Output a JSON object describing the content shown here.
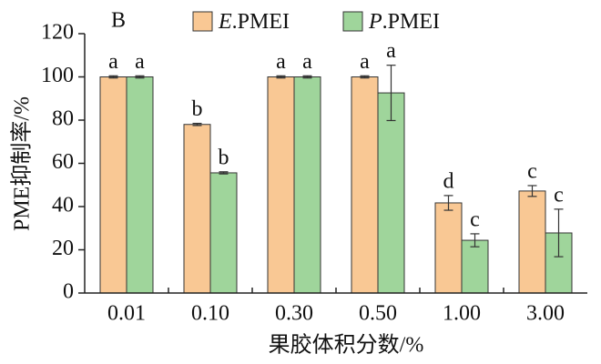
{
  "chart_data": {
    "type": "bar",
    "panel_label": "B",
    "x_label": "果胶体积分数/%",
    "y_label": "PME抑制率/%",
    "categories": [
      "0.01",
      "0.10",
      "0.30",
      "0.50",
      "1.00",
      "3.00"
    ],
    "series": [
      {
        "name": "E.PMEI",
        "color": "#f9c894",
        "values": [
          100,
          78,
          100,
          100,
          41.7,
          47.2
        ],
        "errors": [
          0.5,
          0.5,
          0.5,
          0.5,
          3.4,
          2.5
        ],
        "labels": [
          "a",
          "b",
          "a",
          "a",
          "d",
          "c"
        ]
      },
      {
        "name": "P.PMEI",
        "color": "#9fd59b",
        "values": [
          100,
          55.6,
          100,
          92.6,
          24.4,
          27.8
        ],
        "errors": [
          0.5,
          0.5,
          0.5,
          12.8,
          3,
          11
        ],
        "labels": [
          "a",
          "b",
          "a",
          "a",
          "c",
          "c"
        ]
      }
    ],
    "ylim": [
      0,
      120
    ],
    "yticks": [
      0,
      20,
      40,
      60,
      80,
      100,
      120
    ],
    "grid": false,
    "legend": "top"
  }
}
